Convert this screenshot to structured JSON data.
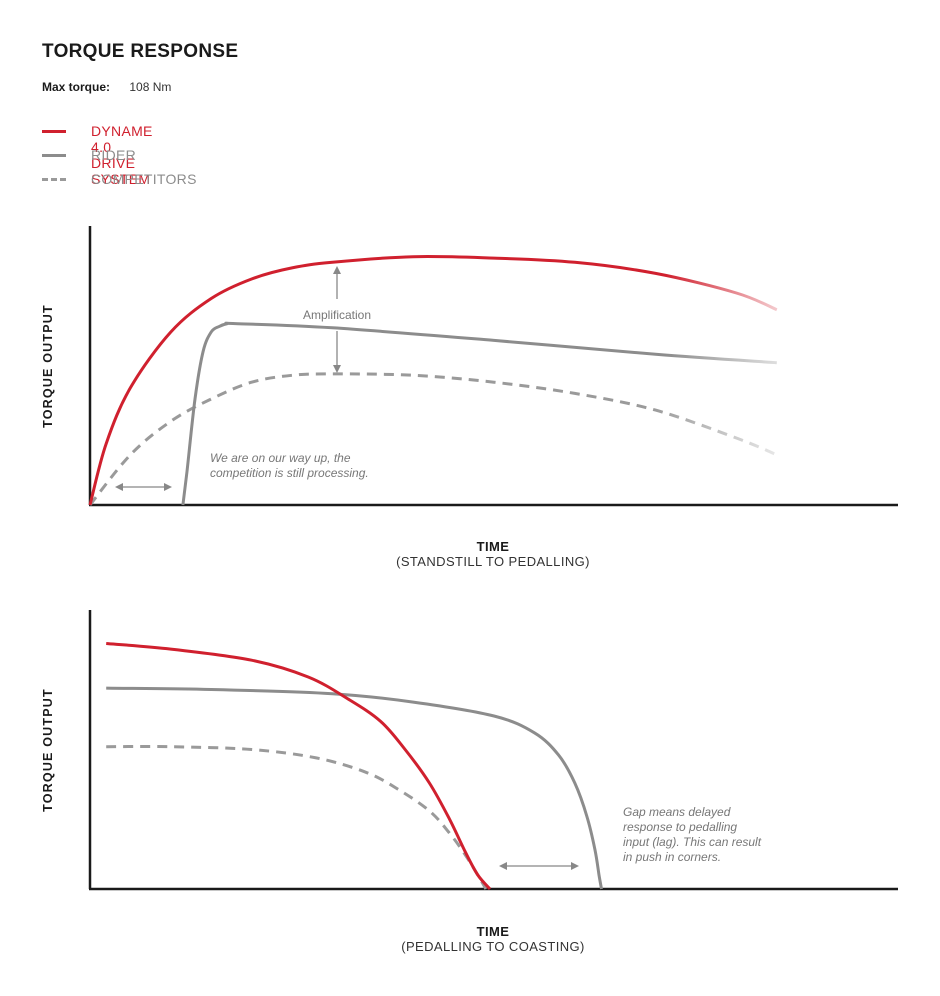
{
  "page": {
    "title": "TORQUE RESPONSE",
    "max_torque_label": "Max torque:",
    "max_torque_value": "108 Nm"
  },
  "legend": [
    {
      "label": "DYNAME 4.0 DRIVE SYSTEM",
      "color": "#d0202e",
      "style": "solid"
    },
    {
      "label": "RIDER",
      "color": "#8c8c8c",
      "style": "solid"
    },
    {
      "label": "COMPETITORS",
      "color": "#9a9a9a",
      "style": "dashed"
    }
  ],
  "chart_data": [
    {
      "type": "line",
      "ylabel": "TORQUE OUTPUT",
      "xlabel": "TIME",
      "xsublabel": "(STANDSTILL TO PEDALLING)",
      "xlim": [
        0,
        100
      ],
      "ylim": [
        0,
        100
      ],
      "grid": false,
      "legend_position": "top-left",
      "series": [
        {
          "name": "DYNAME 4.0 DRIVE SYSTEM",
          "color": "#d0202e",
          "style": "solid",
          "x": [
            0,
            2,
            5,
            10,
            15,
            20,
            25,
            30,
            40,
            50,
            60,
            70,
            80,
            85
          ],
          "y": [
            0,
            22,
            42,
            62,
            74,
            81,
            85,
            87,
            89,
            88.5,
            87,
            83,
            76,
            70
          ]
        },
        {
          "name": "RIDER",
          "color": "#8c8c8c",
          "style": "solid",
          "x": [
            11.5,
            12,
            13,
            14,
            15,
            16,
            17,
            18,
            30,
            50,
            70,
            85
          ],
          "y": [
            0,
            12,
            38,
            55,
            62,
            64,
            65,
            65,
            63.5,
            59,
            54,
            51
          ]
        },
        {
          "name": "COMPETITORS",
          "color": "#9a9a9a",
          "style": "dashed",
          "x": [
            0,
            5,
            10,
            15,
            20,
            25,
            30,
            40,
            50,
            60,
            70,
            80,
            85
          ],
          "y": [
            0,
            18,
            30,
            38,
            44,
            46.5,
            47,
            46.5,
            44,
            40,
            34,
            24,
            18
          ]
        }
      ],
      "annotations": [
        {
          "text": "Amplification"
        },
        {
          "text_lines": [
            "We are on our way up, the",
            "competition is still processing."
          ]
        }
      ]
    },
    {
      "type": "line",
      "ylabel": "TORQUE OUTPUT",
      "xlabel": "TIME",
      "xsublabel": "(PEDALLING TO COASTING)",
      "xlim": [
        0,
        100
      ],
      "ylim": [
        0,
        100
      ],
      "grid": false,
      "series": [
        {
          "name": "DYNAME 4.0 DRIVE SYSTEM",
          "color": "#d0202e",
          "style": "solid",
          "x": [
            2,
            10,
            20,
            27,
            32,
            36,
            39,
            42,
            44.5,
            46.5,
            48,
            49.5
          ],
          "y": [
            88,
            86,
            82,
            76,
            68,
            60,
            50,
            38,
            25,
            13,
            5,
            0
          ]
        },
        {
          "name": "RIDER",
          "color": "#8c8c8c",
          "style": "solid",
          "x": [
            2,
            15,
            30,
            40,
            50,
            55,
            58,
            60,
            61.5,
            62.5,
            63,
            63.3
          ],
          "y": [
            72,
            71.5,
            70,
            67,
            62,
            56,
            48,
            38,
            26,
            14,
            5,
            0
          ]
        },
        {
          "name": "COMPETITORS",
          "color": "#9a9a9a",
          "style": "dashed",
          "x": [
            2,
            10,
            20,
            28,
            34,
            38,
            42,
            44.5,
            46.5,
            48,
            49
          ],
          "y": [
            51,
            51,
            50,
            47,
            42,
            36,
            28,
            20,
            12,
            5,
            0
          ]
        }
      ],
      "annotations": [
        {
          "text_lines": [
            "Gap means delayed",
            "response to pedalling",
            "input (lag). This can result",
            "in push in corners."
          ]
        }
      ]
    }
  ]
}
